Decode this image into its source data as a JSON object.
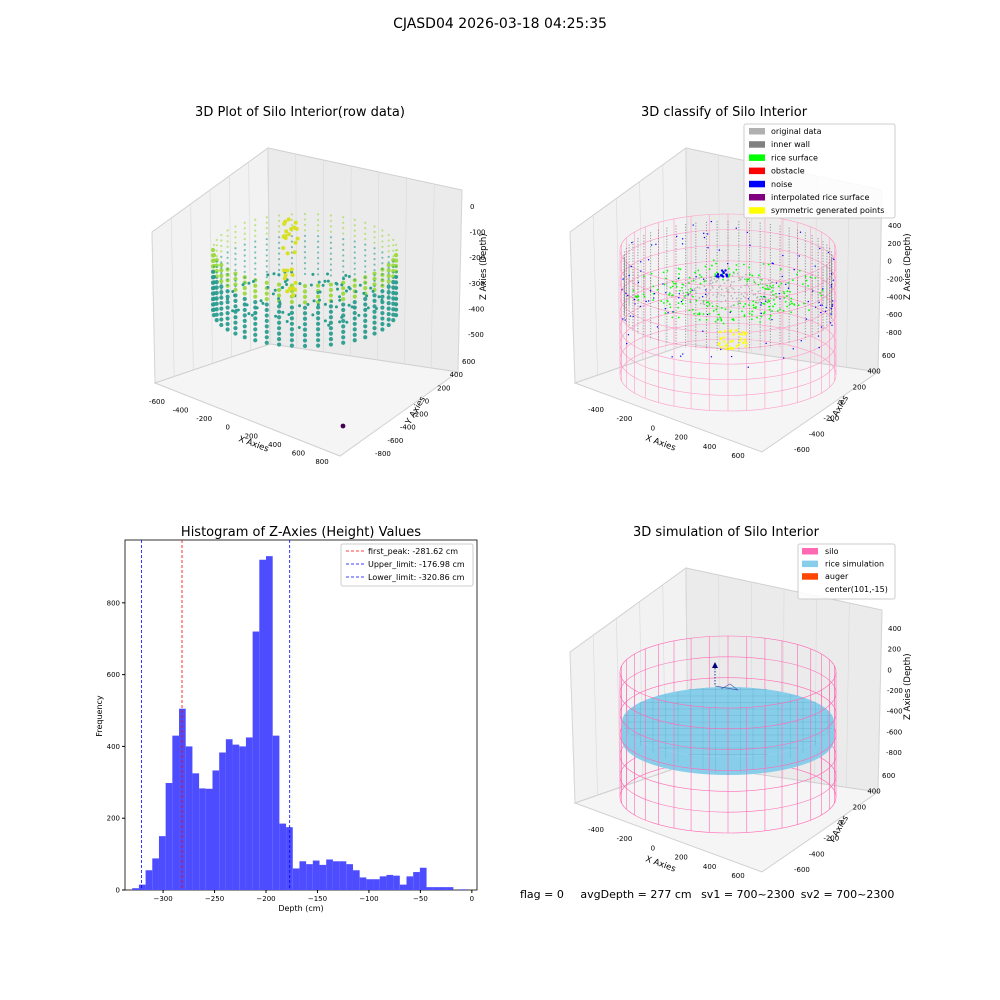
{
  "suptitle": "CJASD04 2026-03-18 04:25:35",
  "footer": {
    "flag": "flag = 0",
    "avg_depth": "avgDepth = 277 cm",
    "sv1": "sv1 = 700~2300",
    "sv2": "sv2 = 700~2300"
  },
  "chart_data": [
    {
      "type": "scatter",
      "projection": "3d",
      "title": "3D Plot of Silo Interior(row data)",
      "xlabel": "X Axies",
      "ylabel": "Y Axies",
      "zlabel": "Z Axies (Depth)",
      "xticks": [
        "-600",
        "-400",
        "-200",
        "0",
        "200",
        "400",
        "600",
        "800"
      ],
      "yticks": [
        "-800",
        "-600",
        "-400",
        "-200",
        "0",
        "200",
        "400",
        "600"
      ],
      "zticks": [
        "0",
        "-100",
        "-200",
        "-300",
        "-400",
        "-500"
      ],
      "colormap": "viridis",
      "colors": {
        "surface": "#2a9d8f",
        "top": "#9bd93c",
        "peak": "#d9e021",
        "outlier": "#440154"
      }
    },
    {
      "type": "scatter",
      "projection": "3d",
      "title": "3D classify of Silo Interior",
      "xlabel": "X Axies",
      "ylabel": "Y Axies",
      "zlabel": "Z Axies (Depth)",
      "xticks": [
        "-400",
        "-200",
        "0",
        "200",
        "400",
        "600"
      ],
      "yticks": [
        "-600",
        "-400",
        "-200",
        "0",
        "200",
        "400",
        "600"
      ],
      "zticks": [
        "400",
        "200",
        "0",
        "-200",
        "-400",
        "-600",
        "-800"
      ],
      "legend": {
        "placement": "upper right",
        "entries": [
          {
            "label": "original data",
            "color": "#b0b0b0"
          },
          {
            "label": "inner wall",
            "color": "#808080"
          },
          {
            "label": "rice surface",
            "color": "#00ff00"
          },
          {
            "label": "obstacle",
            "color": "#ff0000"
          },
          {
            "label": "noise",
            "color": "#0000ff"
          },
          {
            "label": "interpolated rice surface",
            "color": "#800080"
          },
          {
            "label": "symmetric generated points",
            "color": "#ffff00"
          }
        ]
      },
      "colors": {
        "wire": "#ff9ec8"
      }
    },
    {
      "type": "bar",
      "title": "Histogram of Z-Axies (Height) Values",
      "xlabel": "Depth (cm)",
      "ylabel": "Frequency",
      "xlim": [
        -337,
        5
      ],
      "ylim": [
        0,
        975
      ],
      "xticks": [
        -300,
        -250,
        -200,
        -150,
        -100,
        -50,
        0
      ],
      "yticks": [
        0,
        200,
        400,
        600,
        800
      ],
      "bin_start": -330,
      "bin_width": 6.5,
      "values": [
        5,
        15,
        55,
        88,
        150,
        298,
        430,
        505,
        400,
        325,
        283,
        282,
        333,
        383,
        420,
        405,
        400,
        425,
        720,
        920,
        930,
        430,
        185,
        175,
        60,
        80,
        72,
        82,
        70,
        85,
        80,
        80,
        72,
        55,
        35,
        30,
        30,
        38,
        42,
        40,
        15,
        38,
        50,
        62,
        8,
        8,
        8,
        8,
        0,
        2
      ],
      "bar_color": "#4d4dff",
      "vlines": [
        {
          "label": "first_peak: -281.62 cm",
          "x": -281.62,
          "color": "#ff0000"
        },
        {
          "label": "Upper_limit: -176.98 cm",
          "x": -176.98,
          "color": "#0000ff"
        },
        {
          "label": "Lower_limit: -320.86 cm",
          "x": -320.86,
          "color": "#0000ff"
        }
      ],
      "legend_placement": "upper right"
    },
    {
      "type": "surface",
      "projection": "3d",
      "title": "3D simulation of Silo Interior",
      "xlabel": "X Axies",
      "ylabel": "Y Axies",
      "zlabel": "Z Axies (Depth)",
      "xticks": [
        "-400",
        "-200",
        "0",
        "200",
        "400",
        "600"
      ],
      "yticks": [
        "-600",
        "-400",
        "-200",
        "0",
        "200",
        "400",
        "600"
      ],
      "zticks": [
        "400",
        "200",
        "0",
        "-200",
        "-400",
        "-600",
        "-800"
      ],
      "legend": {
        "placement": "upper right",
        "entries": [
          {
            "label": "silo",
            "color": "#ff69b4"
          },
          {
            "label": "rice simulation",
            "color": "#87ceeb"
          },
          {
            "label": "auger",
            "color": "#ff4500"
          },
          {
            "label": "center(101,-15)",
            "color": "none"
          }
        ]
      }
    }
  ]
}
